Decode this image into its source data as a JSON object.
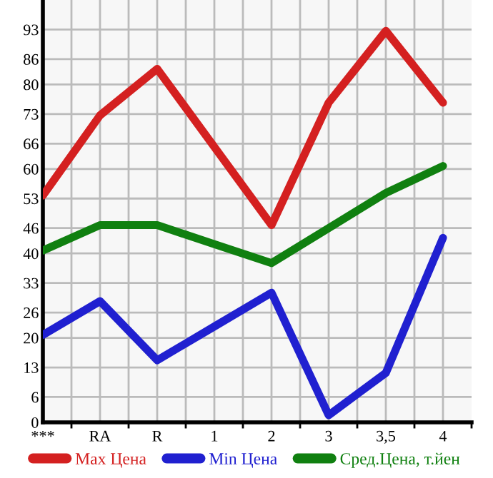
{
  "chart_data": {
    "type": "line",
    "categories": [
      "***",
      "RA",
      "R",
      "1",
      "2",
      "3",
      "3,5",
      "4"
    ],
    "series": [
      {
        "name": "Max Цена",
        "color": "#d42020",
        "values": [
          53.7,
          72.7,
          83.7,
          65.2,
          46.7,
          75.7,
          92.7,
          75.7
        ]
      },
      {
        "name": "Min Цена",
        "color": "#2020d0",
        "values": [
          20.7,
          28.7,
          14.7,
          22.7,
          30.7,
          1.7,
          11.7,
          43.7
        ]
      },
      {
        "name": "Сред.Цена, т.йен",
        "color": "#108010",
        "values": [
          40.7,
          46.7,
          46.7,
          42.2,
          37.7,
          46,
          54.3,
          60.7
        ]
      }
    ],
    "ylim": [
      0,
      100
    ],
    "yticks": [
      0,
      6,
      13,
      20,
      26,
      33,
      40,
      46,
      53,
      60,
      66,
      73,
      80,
      86,
      93
    ],
    "grid": true,
    "legend": "bottom",
    "marker": "none",
    "line_style": "solid"
  }
}
